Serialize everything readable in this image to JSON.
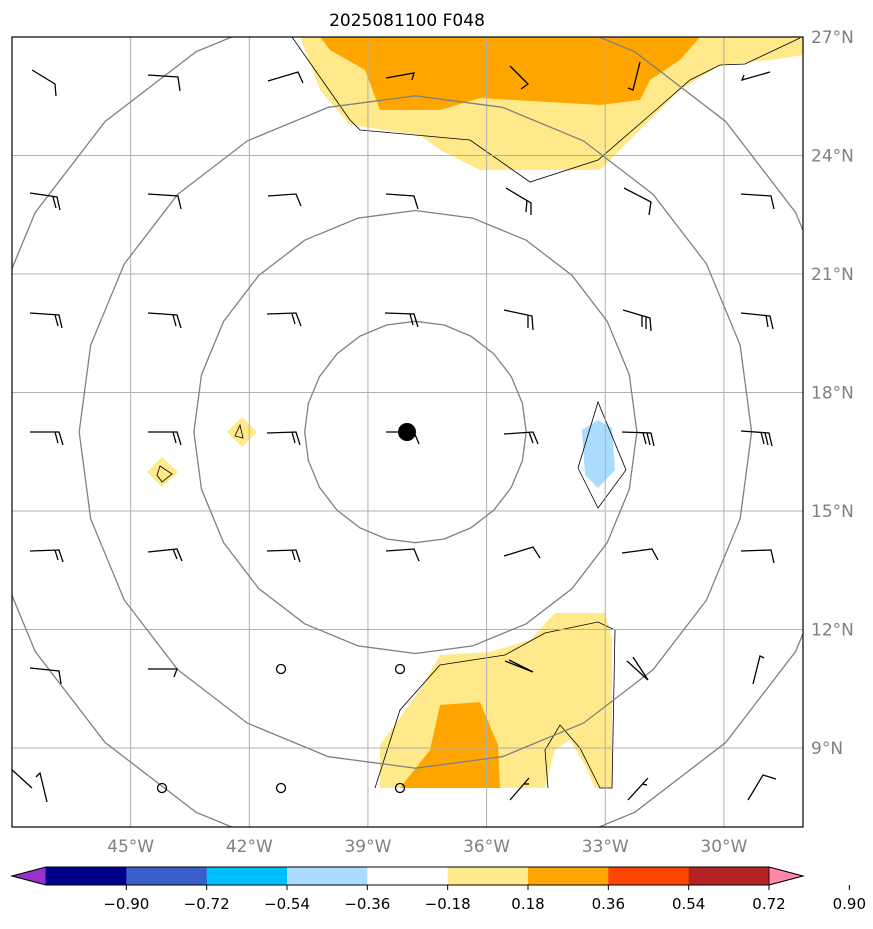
{
  "title": "2025081100 F048",
  "map": {
    "lon_range": [
      -48,
      -28
    ],
    "lat_range": [
      7,
      27
    ],
    "lon_ticks": [
      {
        "value": -45,
        "label": "45°W"
      },
      {
        "value": -42,
        "label": "42°W"
      },
      {
        "value": -39,
        "label": "39°W"
      },
      {
        "value": -36,
        "label": "36°W"
      },
      {
        "value": -33,
        "label": "33°W"
      },
      {
        "value": -30,
        "label": "30°W"
      }
    ],
    "lat_ticks": [
      {
        "value": 27,
        "label": "27°N"
      },
      {
        "value": 24,
        "label": "24°N"
      },
      {
        "value": 21,
        "label": "21°N"
      },
      {
        "value": 18,
        "label": "18°N"
      },
      {
        "value": 15,
        "label": "15°N"
      },
      {
        "value": 12,
        "label": "12°N"
      },
      {
        "value": 9,
        "label": "9°N"
      }
    ],
    "gridlines": true,
    "center": {
      "lon": -37.8,
      "lat": 17.0
    },
    "range_rings_deg": [
      2.8,
      5.6,
      8.5,
      11.1
    ],
    "colors": {
      "ring": "#808080",
      "grid": "#b0b0b0",
      "tick_label": "#808080",
      "wind_barb": "#000000",
      "low_fill": "#ffe98a",
      "mid_fill": "#ffa500",
      "neg_fill": "#aadcff"
    }
  },
  "colorbar": {
    "levels": [
      "−0.90",
      "−0.72",
      "−0.54",
      "−0.36",
      "−0.18",
      "0.18",
      "0.36",
      "0.54",
      "0.72",
      "0.90"
    ],
    "colors": [
      "#9932cc",
      "#00008b",
      "#3a5fcd",
      "#00bfff",
      "#aadcff",
      "#ffffff",
      "#ffe98a",
      "#ffa500",
      "#ff4500",
      "#b22222",
      "#ff88aa"
    ]
  }
}
